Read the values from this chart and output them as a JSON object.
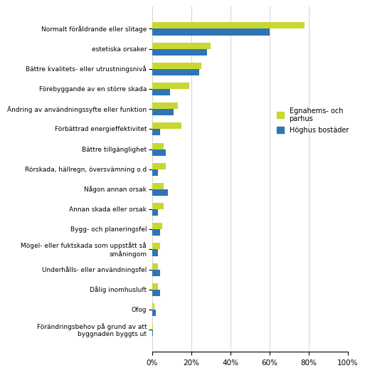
{
  "categories": [
    "Normalt föråldrande eller slitage",
    "estetiska orsaker",
    "Bättre kvalitets- eller utrustningsnivå",
    "Förebyggande av en större skada",
    "Ändring av användningssyfte eller funktion",
    "Förbättrad energieffektivitet",
    "Bättre tillgänglighet",
    "Rörskada, hällregn, översvämning o.d",
    "Någon annan orsak",
    "Annan skada eller orsak",
    "Bygg- och planeringsfel",
    "Mögel- eller fuktskada som uppstått så\nsmåningom",
    "Underhålls- eller användningsfel",
    "Dålig inomhusluft",
    "Ofog",
    "Förändringsbehov på grund av att\nbyggnaden byggts ut"
  ],
  "egnahems": [
    78,
    30,
    25,
    19,
    13,
    15,
    6,
    7,
    6,
    6,
    5,
    4,
    3,
    3,
    1,
    0.5
  ],
  "hoghus": [
    60,
    28,
    24,
    9,
    11,
    4,
    7,
    3,
    8,
    3,
    4,
    3,
    4,
    4,
    2,
    0.5
  ],
  "color_egnahems": "#c8d732",
  "color_hoghus": "#2e75b6",
  "legend_egnahems": "Egnahems- och\nparhus",
  "legend_hoghus": "Höghus bostäder",
  "xlim": [
    0,
    100
  ],
  "xticks": [
    0,
    20,
    40,
    60,
    80,
    100
  ],
  "xticklabels": [
    "0%",
    "20%",
    "40%",
    "60%",
    "80%",
    "100%"
  ],
  "bar_height": 0.32,
  "figsize": [
    4.91,
    5.27
  ]
}
